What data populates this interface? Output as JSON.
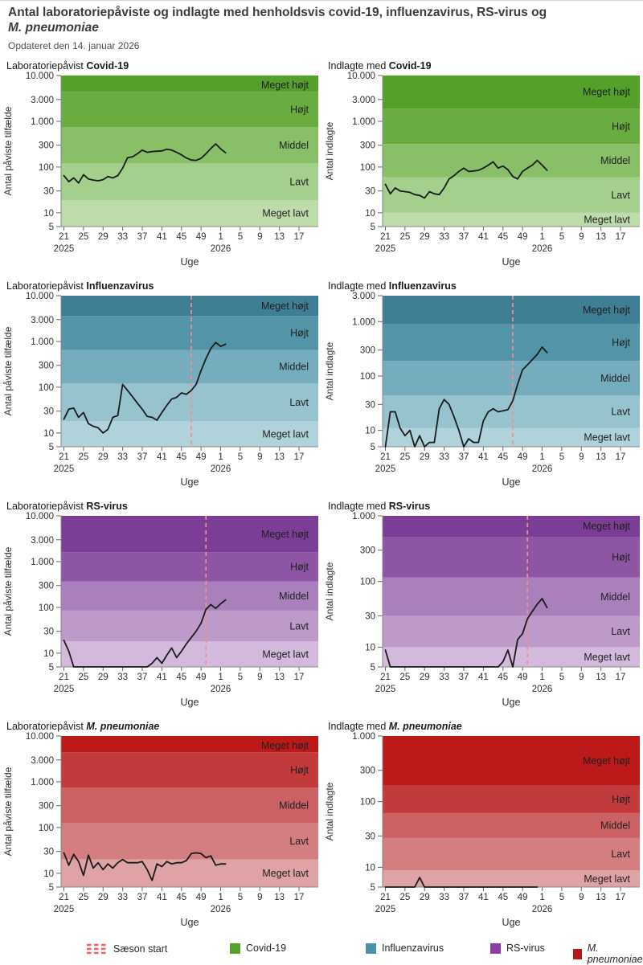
{
  "header": {
    "title_line1": "Antal laboratoriepåviste og indlagte med henholdsvis covid-19, influenzavirus, RS-virus og",
    "title_line2_italic": "M. pneumoniae",
    "subtitle": "Opdateret den 14. januar 2026"
  },
  "levels": [
    "Meget lavt",
    "Lavt",
    "Middel",
    "Højt",
    "Meget højt"
  ],
  "axis": {
    "xlabel": "Uge",
    "year_left": "2025",
    "year_right": "2026",
    "x_ticks": [
      21,
      25,
      29,
      33,
      37,
      41,
      45,
      49,
      1,
      5,
      9,
      13,
      17
    ],
    "x_span_weeks": 52.5,
    "y_tick_values": [
      5,
      10,
      30,
      100,
      300,
      1000,
      3000,
      10000
    ],
    "y_tick_labels": [
      "5",
      "10",
      "30",
      "100",
      "300",
      "1.000",
      "3.000",
      "10.000"
    ],
    "ymin": 5
  },
  "palettes": {
    "green": [
      "#bedcab",
      "#a5cf8d",
      "#89bf67",
      "#69ad41",
      "#54a02a"
    ],
    "teal": [
      "#b0d2da",
      "#96c3ce",
      "#76adbe",
      "#5494a8",
      "#3e7f96"
    ],
    "purple": [
      "#d3b9dc",
      "#bd9aca",
      "#a980bb",
      "#8d55a4",
      "#7c3d96"
    ],
    "red": [
      "#e0a3a5",
      "#d57e81",
      "#cc6164",
      "#c33a3c",
      "#bc1a1a"
    ]
  },
  "style": {
    "line_color": "#1a1a1a",
    "season_line_color": "#f49090",
    "axis_color": "#8a8a8a",
    "tick_color": "#666666",
    "label_color": "#303030",
    "band_label_color": "#1f1f1f"
  },
  "legend": {
    "season": {
      "label": "Sæson start",
      "color": "#f55f5f"
    },
    "items": [
      {
        "label": "Covid-19",
        "color": "#55a32b",
        "italic": false
      },
      {
        "label": "Influenzavirus",
        "color": "#4a92a6",
        "italic": false
      },
      {
        "label": "RS-virus",
        "color": "#8b3fa3",
        "italic": false
      },
      {
        "label": "M. pneumoniae",
        "color": "#bb1616",
        "italic": true
      }
    ]
  },
  "chart_data": [
    {
      "id": "covid-lab",
      "type": "line",
      "title_prefix": "Laboratoriepåvist ",
      "pathogen": "Covid-19",
      "italic_pathogen": false,
      "ylabel": "Antal påviste tilfælde",
      "ymax": 10000,
      "band_thresholds": [
        19,
        120,
        750,
        4400
      ],
      "palette": "green",
      "season_start_week": null,
      "weeks": [
        21,
        22,
        23,
        24,
        25,
        26,
        27,
        28,
        29,
        30,
        31,
        32,
        33,
        34,
        35,
        36,
        37,
        38,
        39,
        40,
        41,
        42,
        43,
        44,
        45,
        46,
        47,
        48,
        49,
        50,
        51,
        52,
        1,
        2
      ],
      "values": [
        65,
        48,
        58,
        45,
        68,
        55,
        52,
        50,
        53,
        62,
        58,
        65,
        95,
        160,
        168,
        195,
        235,
        210,
        218,
        222,
        225,
        245,
        235,
        210,
        185,
        158,
        142,
        140,
        155,
        195,
        255,
        320,
        250,
        205
      ]
    },
    {
      "id": "covid-hosp",
      "type": "line",
      "title_prefix": "Indlagte med ",
      "pathogen": "Covid-19",
      "italic_pathogen": false,
      "ylabel": "Antal indlagte",
      "ymax": 10000,
      "band_thresholds": [
        10,
        60,
        320,
        1900
      ],
      "palette": "green",
      "season_start_week": null,
      "weeks": [
        21,
        22,
        23,
        24,
        25,
        26,
        27,
        28,
        29,
        30,
        31,
        32,
        33,
        34,
        35,
        36,
        37,
        38,
        39,
        40,
        41,
        42,
        43,
        44,
        45,
        46,
        47,
        48,
        49,
        50,
        51,
        52,
        1,
        2
      ],
      "values": [
        42,
        26,
        35,
        30,
        29,
        28,
        25,
        24,
        21,
        29,
        26,
        25,
        35,
        55,
        65,
        80,
        95,
        80,
        82,
        85,
        95,
        110,
        130,
        95,
        105,
        88,
        62,
        55,
        80,
        95,
        110,
        140,
        110,
        85
      ]
    },
    {
      "id": "influenza-lab",
      "type": "line",
      "title_prefix": "Laboratoriepåvist ",
      "pathogen": "Influenzavirus",
      "italic_pathogen": false,
      "ylabel": "Antal påviste tilfælde",
      "ymax": 10000,
      "band_thresholds": [
        18,
        120,
        650,
        3600
      ],
      "palette": "teal",
      "season_start_week": 47,
      "weeks": [
        21,
        22,
        23,
        24,
        25,
        26,
        27,
        28,
        29,
        30,
        31,
        32,
        33,
        34,
        35,
        36,
        37,
        38,
        39,
        40,
        41,
        42,
        43,
        44,
        45,
        46,
        47,
        48,
        49,
        50,
        51,
        52,
        1,
        2
      ],
      "values": [
        20,
        33,
        35,
        22,
        28,
        16,
        14,
        13,
        10,
        12,
        22,
        24,
        115,
        85,
        62,
        45,
        33,
        23,
        22,
        19,
        28,
        40,
        55,
        60,
        75,
        70,
        85,
        115,
        230,
        420,
        700,
        950,
        780,
        870
      ]
    },
    {
      "id": "influenza-hosp",
      "type": "line",
      "title_prefix": "Indlagte med ",
      "pathogen": "Influenzavirus",
      "italic_pathogen": false,
      "ylabel": "Antal indlagte",
      "ymax": 3000,
      "band_thresholds": [
        11,
        44,
        190,
        900
      ],
      "palette": "teal",
      "season_start_week": 47,
      "weeks": [
        21,
        22,
        23,
        24,
        25,
        26,
        27,
        28,
        29,
        30,
        31,
        32,
        33,
        34,
        35,
        36,
        37,
        38,
        39,
        40,
        41,
        42,
        43,
        44,
        45,
        46,
        47,
        48,
        49,
        50,
        51,
        52,
        1,
        2
      ],
      "values": [
        5,
        22,
        22,
        11,
        8,
        10,
        5,
        8,
        5,
        6,
        6,
        25,
        37,
        30,
        18,
        10,
        5,
        7,
        6,
        6,
        15,
        22,
        25,
        22,
        23,
        24,
        35,
        70,
        130,
        160,
        200,
        250,
        340,
        270
      ]
    },
    {
      "id": "rs-lab",
      "type": "line",
      "title_prefix": "Laboratoriepåvist ",
      "pathogen": "RS-virus",
      "italic_pathogen": false,
      "ylabel": "Antal påviste tilfælde",
      "ymax": 10000,
      "band_thresholds": [
        18,
        85,
        370,
        1600
      ],
      "palette": "purple",
      "season_start_week": 50,
      "weeks": [
        21,
        22,
        23,
        24,
        25,
        26,
        27,
        28,
        29,
        30,
        31,
        32,
        33,
        34,
        35,
        36,
        37,
        38,
        39,
        40,
        41,
        42,
        43,
        44,
        45,
        46,
        47,
        48,
        49,
        50,
        51,
        52,
        1,
        2
      ],
      "values": [
        19,
        11,
        5,
        5,
        5,
        5,
        5,
        5,
        5,
        5,
        5,
        5,
        5,
        5,
        5,
        5,
        5,
        5,
        6,
        8,
        6,
        9,
        13,
        8,
        11,
        16,
        22,
        30,
        45,
        90,
        115,
        95,
        120,
        145
      ]
    },
    {
      "id": "rs-hosp",
      "type": "line",
      "title_prefix": "Indlagte med ",
      "pathogen": "RS-virus",
      "italic_pathogen": false,
      "ylabel": "Antal indlagte",
      "ymax": 1000,
      "band_thresholds": [
        10,
        30,
        115,
        480
      ],
      "palette": "purple",
      "season_start_week": 50,
      "weeks": [
        21,
        22,
        23,
        24,
        25,
        26,
        27,
        28,
        29,
        30,
        31,
        32,
        33,
        34,
        35,
        36,
        37,
        38,
        39,
        40,
        41,
        42,
        43,
        44,
        45,
        46,
        47,
        48,
        49,
        50,
        51,
        52,
        1,
        2
      ],
      "values": [
        9,
        5,
        5,
        5,
        5,
        5,
        5,
        5,
        5,
        5,
        5,
        5,
        5,
        5,
        5,
        5,
        5,
        5,
        5,
        5,
        5,
        5,
        5,
        5,
        6,
        9,
        5,
        13,
        16,
        27,
        35,
        45,
        55,
        40
      ]
    },
    {
      "id": "mpneumoniae-lab",
      "type": "line",
      "title_prefix": "Laboratoriepåvist ",
      "pathogen": "M. pneumoniae",
      "italic_pathogen": true,
      "ylabel": "Antal påviste tilfælde",
      "ymax": 10000,
      "band_thresholds": [
        20,
        125,
        750,
        4400
      ],
      "palette": "red",
      "season_start_week": null,
      "weeks": [
        21,
        22,
        23,
        24,
        25,
        26,
        27,
        28,
        29,
        30,
        31,
        32,
        33,
        34,
        35,
        36,
        37,
        38,
        39,
        40,
        41,
        42,
        43,
        44,
        45,
        46,
        47,
        48,
        49,
        50,
        51,
        52,
        1,
        2
      ],
      "values": [
        28,
        15,
        26,
        18,
        9,
        25,
        13,
        17,
        12,
        16,
        13,
        17,
        20,
        17,
        17,
        17,
        18,
        12,
        7,
        16,
        14,
        18,
        16,
        17,
        17,
        19,
        27,
        28,
        27,
        22,
        24,
        15,
        16,
        16
      ]
    },
    {
      "id": "mpneumoniae-hosp",
      "type": "line",
      "title_prefix": "Indlagte med ",
      "pathogen": "M. pneumoniae",
      "italic_pathogen": true,
      "ylabel": "Antal indlagte",
      "ymax": 1000,
      "band_thresholds": [
        9,
        28,
        67,
        175
      ],
      "palette": "red",
      "season_start_week": null,
      "weeks": [
        21,
        22,
        23,
        24,
        25,
        26,
        27,
        28,
        29,
        30,
        31,
        32,
        33,
        34,
        35,
        36,
        37,
        38,
        39,
        40,
        41,
        42,
        43,
        44,
        45,
        46,
        47,
        48,
        49,
        50,
        51,
        52
      ],
      "values": [
        5,
        5,
        5,
        5,
        5,
        5,
        5,
        7,
        5,
        5,
        5,
        5,
        5,
        5,
        5,
        5,
        5,
        5,
        5,
        5,
        5,
        5,
        5,
        5,
        5,
        5,
        5,
        5,
        5,
        5,
        5,
        5
      ]
    }
  ]
}
